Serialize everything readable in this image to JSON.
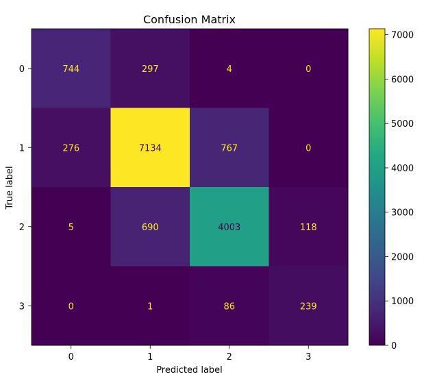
{
  "chart_data": {
    "type": "heatmap",
    "title": "Confusion Matrix",
    "xlabel": "Predicted label",
    "ylabel": "True label",
    "x_categories": [
      "0",
      "1",
      "2",
      "3"
    ],
    "y_categories": [
      "0",
      "1",
      "2",
      "3"
    ],
    "matrix": [
      [
        744,
        297,
        4,
        0
      ],
      [
        276,
        7134,
        767,
        0
      ],
      [
        5,
        690,
        4003,
        118
      ],
      [
        0,
        1,
        86,
        239
      ]
    ],
    "colormap": "viridis",
    "colorbar": {
      "ticks": [
        0,
        1000,
        2000,
        3000,
        4000,
        5000,
        6000,
        7000
      ],
      "tick_labels": [
        "0",
        "1000",
        "2000",
        "3000",
        "4000",
        "5000",
        "6000",
        "7000"
      ],
      "range": [
        0,
        7134
      ]
    },
    "annotation_colors": {
      "on_dark": "#fde725",
      "on_light": "#440154"
    }
  }
}
